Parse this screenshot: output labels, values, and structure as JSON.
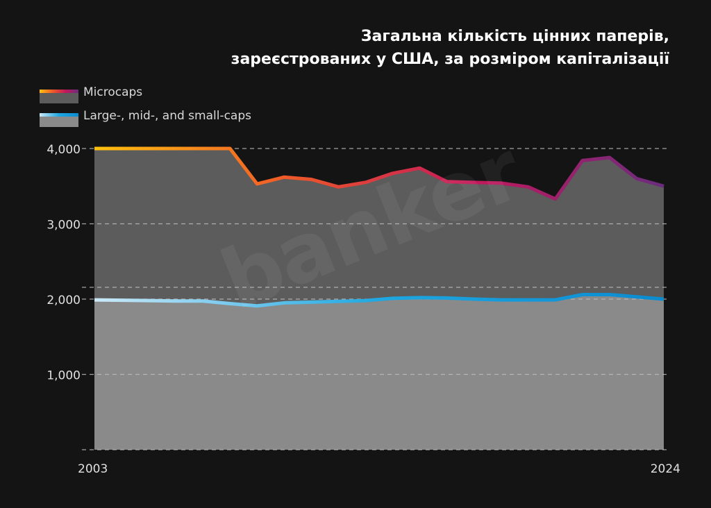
{
  "title_lines": [
    "Загальна кількість цінних паперів,",
    "зареєстрованих у США, за розміром капіталізації"
  ],
  "watermark": "banker",
  "legend": [
    {
      "label": "Microcaps",
      "bar_colors": [
        "#ffc20e",
        "#f05a28",
        "#c2185b",
        "#6b2c7e"
      ],
      "fill_color": "#5c5c5c"
    },
    {
      "label": "Large-, mid-, and small-caps",
      "bar_colors": [
        "#cbe9f8",
        "#1ea7e1",
        "#0a8bd0"
      ],
      "fill_color": "#8a8a8a"
    }
  ],
  "colors": {
    "background": "#141414",
    "total_area": "#5c5c5c",
    "large_area": "#8a8a8a",
    "grid": "#bdbdbd"
  },
  "chart_data": {
    "type": "area",
    "x": [
      2003,
      2004,
      2005,
      2006,
      2007,
      2008,
      2009,
      2010,
      2011,
      2012,
      2013,
      2014,
      2015,
      2016,
      2017,
      2018,
      2019,
      2020,
      2021,
      2022,
      2023,
      2024
    ],
    "x_tick_labels": [
      "2003",
      "2024"
    ],
    "y_tick_labels": [
      "4,000",
      "3,000",
      "2,000",
      "1,000"
    ],
    "y_ticks": [
      4000,
      3000,
      2000,
      1000
    ],
    "ylim": [
      0,
      4000
    ],
    "grid": true,
    "series": [
      {
        "name": "Microcaps",
        "values": [
          4000,
          4000,
          4000,
          4000,
          4000,
          4000,
          3530,
          3620,
          3590,
          3490,
          3550,
          3670,
          3740,
          3560,
          3550,
          3540,
          3490,
          3330,
          3840,
          3880,
          3600,
          3500
        ]
      },
      {
        "name": "Large-, mid-, and small-caps",
        "values": [
          1990,
          1985,
          1980,
          1975,
          1975,
          1940,
          1910,
          1950,
          1960,
          1970,
          1980,
          2010,
          2020,
          2015,
          2000,
          1990,
          1990,
          1990,
          2060,
          2060,
          2030,
          2000
        ]
      }
    ]
  }
}
